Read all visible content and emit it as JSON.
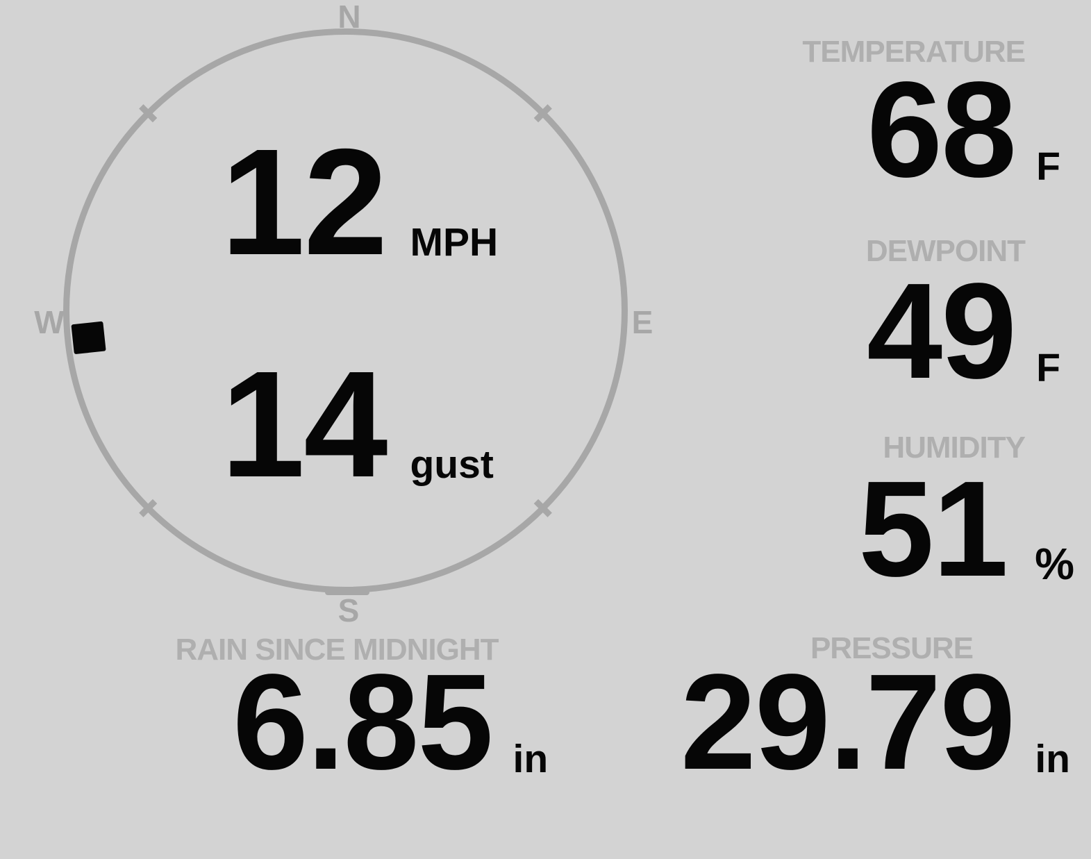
{
  "colors": {
    "bg": "#d3d3d3",
    "muted": "#a7a7a7",
    "label": "#afafaf",
    "ink": "#060606"
  },
  "wind": {
    "compass": {
      "north": "N",
      "east": "E",
      "south": "S",
      "west": "W"
    },
    "direction_deg": 264,
    "speed": {
      "value": "12",
      "unit": "MPH"
    },
    "gust": {
      "value": "14",
      "unit": "gust"
    }
  },
  "stats": {
    "temperature": {
      "label": "TEMPERATURE",
      "value": "68",
      "unit": "F"
    },
    "dewpoint": {
      "label": "DEWPOINT",
      "value": "49",
      "unit": "F"
    },
    "humidity": {
      "label": "HUMIDITY",
      "value": "51",
      "unit": "%"
    },
    "rain": {
      "label": "RAIN SINCE MIDNIGHT",
      "value": "6.85",
      "unit": "in"
    },
    "pressure": {
      "label": "PRESSURE",
      "value": "29.79",
      "unit": "in"
    }
  }
}
